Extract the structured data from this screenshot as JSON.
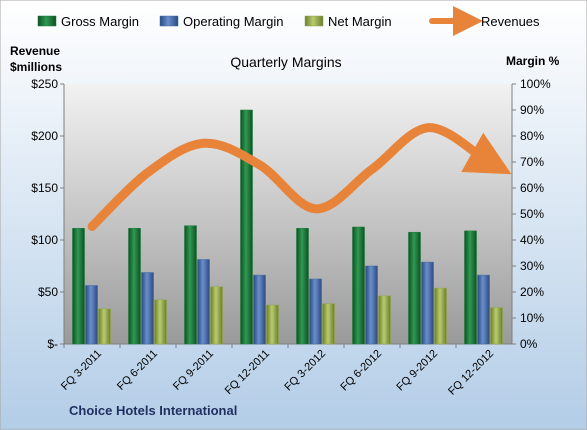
{
  "chart_data": {
    "type": "bar",
    "title": "Quarterly Margins",
    "left_axis_label": [
      "Revenue",
      "$millions"
    ],
    "right_axis_label": "Margin %",
    "left_axis": {
      "ticks": [
        "$-",
        "$50",
        "$100",
        "$150",
        "$200",
        "$250"
      ],
      "range": [
        0,
        250
      ]
    },
    "right_axis": {
      "ticks": [
        "0%",
        "10%",
        "20%",
        "30%",
        "40%",
        "50%",
        "60%",
        "70%",
        "80%",
        "90%",
        "100%"
      ],
      "range": [
        0,
        100
      ]
    },
    "categories": [
      "FQ 3-2011",
      "FQ 6-2011",
      "FQ 9-2011",
      "FQ 12-2011",
      "FQ 3-2012",
      "FQ 6-2012",
      "FQ 9-2012",
      "FQ 12-2012"
    ],
    "series": [
      {
        "name": "Gross Margin",
        "kind": "bar",
        "axis": "right",
        "color": "#1d7a3a",
        "values": [
          44.5,
          44.5,
          45.5,
          90,
          44.5,
          45,
          43,
          43.5
        ]
      },
      {
        "name": "Operating Margin",
        "kind": "bar",
        "axis": "right",
        "color": "#3f68a8",
        "values": [
          22.5,
          27.5,
          32.5,
          26.5,
          25,
          30,
          31.5,
          26.5
        ]
      },
      {
        "name": "Net Margin",
        "kind": "bar",
        "axis": "right",
        "color": "#93a84a",
        "values": [
          13.5,
          17,
          22,
          15,
          15.5,
          18.5,
          21.5,
          14
        ]
      },
      {
        "name": "Revenues",
        "kind": "line",
        "axis": "left",
        "color": "#e8843a",
        "values": [
          113,
          165,
          193,
          172,
          130,
          168,
          208,
          178
        ]
      }
    ],
    "legend_position": "top",
    "grid": false,
    "footnote": "Choice Hotels International"
  }
}
